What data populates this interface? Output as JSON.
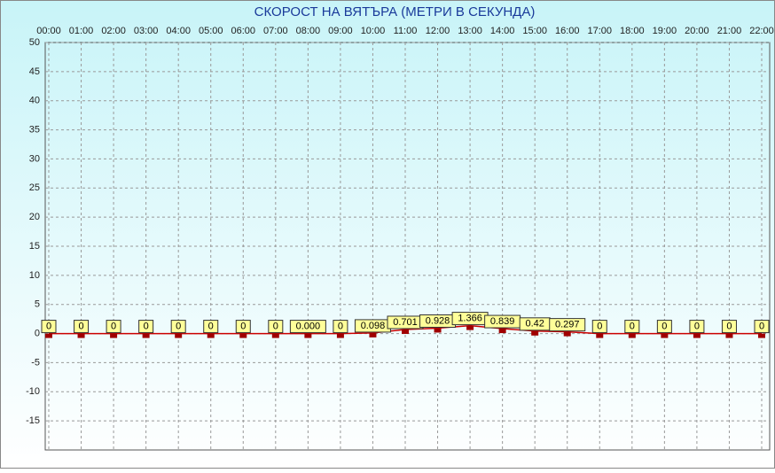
{
  "chart_data": {
    "type": "line",
    "title": "СКОРОСТ НА ВЯТЪРА (МЕТРИ В СЕКУНДА)",
    "categories": [
      "00:00",
      "01:00",
      "02:00",
      "03:00",
      "04:00",
      "05:00",
      "06:00",
      "07:00",
      "08:00",
      "09:00",
      "10:00",
      "11:00",
      "12:00",
      "13:00",
      "14:00",
      "15:00",
      "16:00",
      "17:00",
      "18:00",
      "19:00",
      "20:00",
      "21:00",
      "22:00"
    ],
    "values": [
      0,
      0,
      0,
      0,
      0,
      0,
      0,
      0,
      0,
      0,
      0.098,
      0.701,
      0.928,
      1.366,
      0.839,
      0.42,
      0.297,
      0,
      0,
      0,
      0,
      0,
      0
    ],
    "value_labels": [
      "0",
      "0",
      "0",
      "0",
      "0",
      "0",
      "0",
      "0",
      "0.000",
      "0",
      "0.098",
      "0.701",
      "0.928",
      "1.366",
      "0.839",
      "0.42",
      "0.297",
      "0",
      "0",
      "0",
      "0",
      "0",
      "0"
    ],
    "color": "#cc0000",
    "ylim": [
      -20,
      50
    ],
    "yticks": [
      -15,
      -10,
      -5,
      0,
      5,
      10,
      15,
      20,
      25,
      30,
      35,
      40,
      45,
      50
    ],
    "grid": true
  }
}
